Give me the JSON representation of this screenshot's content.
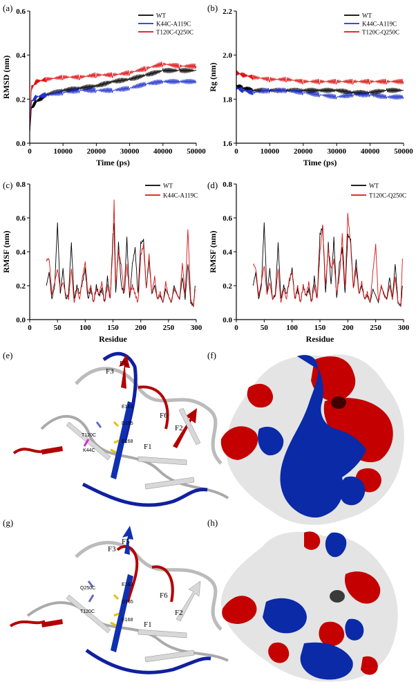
{
  "panel_labels": [
    "(a)",
    "(b)",
    "(c)",
    "(d)",
    "(e)",
    "(f)",
    "(g)",
    "(h)"
  ],
  "colors": {
    "wt": "#000000",
    "k44c_a119c": "#2233cc",
    "t120c_q250c": "#dd1111",
    "surface_red": "#c40000",
    "surface_blue": "#0a2aa8",
    "surface_white": "#e4e4e4"
  },
  "structure_labels": {
    "e": [
      "F5",
      "F3",
      "F6",
      "F2",
      "F1",
      "E163",
      "D165",
      "E168",
      "T120C",
      "K44C"
    ],
    "g": [
      "F5",
      "F3",
      "F6",
      "F2",
      "F1",
      "E163",
      "D165",
      "E168",
      "Q250C",
      "T120C"
    ]
  },
  "chart_data": [
    {
      "panel": "(a)",
      "type": "line",
      "xlabel": "Time (ps)",
      "ylabel": "RMSD (nm)",
      "xlim": [
        0,
        50000
      ],
      "ylim": [
        0.0,
        0.6
      ],
      "xticks": [
        "0",
        "10000",
        "20000",
        "30000",
        "40000",
        "50000"
      ],
      "yticks": [
        "0.0",
        "0.2",
        "0.4",
        "0.6"
      ],
      "legend": "top-right",
      "series": [
        {
          "name": "WT",
          "color": "#000000",
          "x": [
            0,
            500,
            2000,
            5000,
            10000,
            15000,
            20000,
            25000,
            30000,
            35000,
            40000,
            45000,
            50000
          ],
          "y": [
            0.05,
            0.16,
            0.19,
            0.22,
            0.24,
            0.25,
            0.26,
            0.28,
            0.29,
            0.31,
            0.33,
            0.33,
            0.33
          ]
        },
        {
          "name": "K44C-A119C",
          "color": "#2233cc",
          "x": [
            0,
            500,
            2000,
            5000,
            10000,
            15000,
            20000,
            25000,
            30000,
            35000,
            40000,
            45000,
            50000
          ],
          "y": [
            0.05,
            0.19,
            0.21,
            0.22,
            0.23,
            0.24,
            0.24,
            0.24,
            0.25,
            0.27,
            0.28,
            0.28,
            0.28
          ]
        },
        {
          "name": "T120C-Q250C",
          "color": "#dd1111",
          "x": [
            0,
            500,
            2000,
            5000,
            10000,
            15000,
            20000,
            25000,
            30000,
            35000,
            40000,
            45000,
            50000
          ],
          "y": [
            0.05,
            0.25,
            0.28,
            0.29,
            0.3,
            0.3,
            0.31,
            0.31,
            0.32,
            0.34,
            0.36,
            0.35,
            0.35
          ]
        }
      ]
    },
    {
      "panel": "(b)",
      "type": "line",
      "xlabel": "Time (ps)",
      "ylabel": "Rg (nm)",
      "xlim": [
        0,
        50000
      ],
      "ylim": [
        1.6,
        2.2
      ],
      "xticks": [
        "0",
        "10000",
        "20000",
        "30000",
        "40000",
        "50000"
      ],
      "yticks": [
        "1.6",
        "1.8",
        "2.0",
        "2.2"
      ],
      "legend": "top-right",
      "series": [
        {
          "name": "WT",
          "color": "#000000",
          "x": [
            0,
            2000,
            5000,
            10000,
            15000,
            20000,
            25000,
            30000,
            35000,
            40000,
            45000,
            50000
          ],
          "y": [
            1.86,
            1.85,
            1.84,
            1.84,
            1.84,
            1.84,
            1.84,
            1.84,
            1.83,
            1.83,
            1.84,
            1.84
          ]
        },
        {
          "name": "K44C-A119C",
          "color": "#2233cc",
          "x": [
            0,
            2000,
            5000,
            10000,
            15000,
            20000,
            25000,
            30000,
            35000,
            40000,
            45000,
            50000
          ],
          "y": [
            1.85,
            1.84,
            1.83,
            1.84,
            1.84,
            1.83,
            1.82,
            1.81,
            1.82,
            1.82,
            1.81,
            1.81
          ]
        },
        {
          "name": "T120C-Q250C",
          "color": "#dd1111",
          "x": [
            0,
            2000,
            5000,
            10000,
            15000,
            20000,
            25000,
            30000,
            35000,
            40000,
            45000,
            50000
          ],
          "y": [
            1.92,
            1.91,
            1.9,
            1.89,
            1.89,
            1.88,
            1.88,
            1.88,
            1.88,
            1.88,
            1.88,
            1.88
          ]
        }
      ]
    },
    {
      "panel": "(c)",
      "type": "line",
      "xlabel": "Residue",
      "ylabel": "RMSF (nm)",
      "xlim": [
        0,
        300
      ],
      "ylim": [
        0.0,
        0.8
      ],
      "xticks": [
        "0",
        "50",
        "100",
        "150",
        "200",
        "250",
        "300"
      ],
      "yticks": [
        "0.0",
        "0.2",
        "0.4",
        "0.6",
        "0.8"
      ],
      "legend": "top-right",
      "series": [
        {
          "name": "WT",
          "color": "#000000",
          "x": [
            30,
            35,
            40,
            45,
            50,
            55,
            60,
            65,
            70,
            75,
            80,
            85,
            90,
            95,
            100,
            105,
            110,
            115,
            120,
            125,
            130,
            135,
            140,
            145,
            150,
            152,
            155,
            160,
            165,
            170,
            175,
            180,
            185,
            190,
            195,
            200,
            205,
            210,
            215,
            220,
            225,
            230,
            235,
            240,
            245,
            250,
            255,
            260,
            265,
            270,
            275,
            280,
            285,
            290,
            295,
            298
          ],
          "y": [
            0.2,
            0.28,
            0.12,
            0.2,
            0.57,
            0.15,
            0.3,
            0.12,
            0.15,
            0.45,
            0.12,
            0.2,
            0.15,
            0.22,
            0.3,
            0.12,
            0.18,
            0.1,
            0.2,
            0.14,
            0.18,
            0.1,
            0.25,
            0.12,
            0.5,
            0.56,
            0.15,
            0.45,
            0.2,
            0.15,
            0.48,
            0.12,
            0.33,
            0.42,
            0.15,
            0.45,
            0.47,
            0.18,
            0.35,
            0.15,
            0.2,
            0.12,
            0.14,
            0.1,
            0.18,
            0.14,
            0.1,
            0.2,
            0.15,
            0.12,
            0.25,
            0.12,
            0.33,
            0.1,
            0.08,
            0.2
          ]
        },
        {
          "name": "K44C-A119C",
          "color": "#dd1111",
          "x": [
            30,
            35,
            40,
            45,
            50,
            55,
            60,
            65,
            70,
            75,
            80,
            85,
            90,
            95,
            100,
            105,
            110,
            115,
            120,
            125,
            130,
            135,
            140,
            145,
            150,
            152,
            155,
            160,
            165,
            170,
            175,
            180,
            185,
            190,
            195,
            200,
            205,
            210,
            215,
            220,
            225,
            230,
            235,
            240,
            245,
            250,
            255,
            260,
            265,
            270,
            275,
            280,
            285,
            290,
            295,
            298
          ],
          "y": [
            0.35,
            0.36,
            0.15,
            0.22,
            0.3,
            0.18,
            0.22,
            0.15,
            0.12,
            0.3,
            0.1,
            0.18,
            0.12,
            0.25,
            0.34,
            0.15,
            0.2,
            0.1,
            0.18,
            0.15,
            0.22,
            0.1,
            0.2,
            0.12,
            0.45,
            0.7,
            0.2,
            0.4,
            0.32,
            0.15,
            0.32,
            0.15,
            0.2,
            0.15,
            0.1,
            0.38,
            0.44,
            0.18,
            0.38,
            0.15,
            0.25,
            0.12,
            0.16,
            0.1,
            0.22,
            0.14,
            0.1,
            0.18,
            0.15,
            0.12,
            0.33,
            0.15,
            0.53,
            0.12,
            0.08,
            0.18
          ]
        }
      ]
    },
    {
      "panel": "(d)",
      "type": "line",
      "xlabel": "Residue",
      "ylabel": "RMSF (nm)",
      "xlim": [
        0,
        300
      ],
      "ylim": [
        0.0,
        0.8
      ],
      "xticks": [
        "0",
        "50",
        "100",
        "150",
        "200",
        "250",
        "300"
      ],
      "yticks": [
        "0.0",
        "0.2",
        "0.4",
        "0.6",
        "0.8"
      ],
      "legend": "top-right",
      "series": [
        {
          "name": "WT",
          "color": "#000000",
          "x": [
            30,
            35,
            40,
            45,
            50,
            55,
            60,
            65,
            70,
            75,
            80,
            85,
            90,
            95,
            100,
            105,
            110,
            115,
            120,
            125,
            130,
            135,
            140,
            145,
            150,
            155,
            160,
            165,
            170,
            175,
            180,
            185,
            190,
            195,
            200,
            205,
            210,
            215,
            220,
            225,
            230,
            235,
            240,
            245,
            250,
            255,
            260,
            265,
            270,
            275,
            280,
            285,
            290,
            295,
            298
          ],
          "y": [
            0.2,
            0.28,
            0.12,
            0.2,
            0.57,
            0.15,
            0.3,
            0.12,
            0.15,
            0.45,
            0.12,
            0.2,
            0.15,
            0.22,
            0.3,
            0.12,
            0.18,
            0.1,
            0.2,
            0.14,
            0.18,
            0.1,
            0.25,
            0.12,
            0.5,
            0.55,
            0.15,
            0.45,
            0.2,
            0.48,
            0.12,
            0.33,
            0.42,
            0.15,
            0.5,
            0.47,
            0.18,
            0.35,
            0.15,
            0.2,
            0.12,
            0.14,
            0.1,
            0.18,
            0.14,
            0.1,
            0.2,
            0.15,
            0.12,
            0.25,
            0.12,
            0.33,
            0.1,
            0.08,
            0.2
          ]
        },
        {
          "name": "T120C-Q250C",
          "color": "#dd1111",
          "x": [
            30,
            35,
            40,
            45,
            50,
            55,
            60,
            65,
            70,
            75,
            80,
            85,
            90,
            95,
            100,
            105,
            110,
            115,
            120,
            125,
            130,
            135,
            140,
            145,
            150,
            155,
            160,
            165,
            170,
            175,
            180,
            185,
            190,
            195,
            200,
            205,
            210,
            215,
            220,
            225,
            230,
            235,
            240,
            245,
            250,
            255,
            260,
            265,
            270,
            275,
            280,
            285,
            290,
            295,
            298
          ],
          "y": [
            0.33,
            0.3,
            0.14,
            0.22,
            0.32,
            0.15,
            0.22,
            0.12,
            0.14,
            0.3,
            0.1,
            0.18,
            0.12,
            0.24,
            0.28,
            0.12,
            0.2,
            0.1,
            0.2,
            0.14,
            0.22,
            0.1,
            0.2,
            0.12,
            0.4,
            0.55,
            0.2,
            0.42,
            0.3,
            0.35,
            0.15,
            0.25,
            0.5,
            0.18,
            0.62,
            0.44,
            0.18,
            0.3,
            0.15,
            0.22,
            0.12,
            0.16,
            0.1,
            0.28,
            0.44,
            0.1,
            0.2,
            0.14,
            0.12,
            0.2,
            0.12,
            0.25,
            0.1,
            0.08,
            0.36
          ]
        }
      ]
    }
  ]
}
